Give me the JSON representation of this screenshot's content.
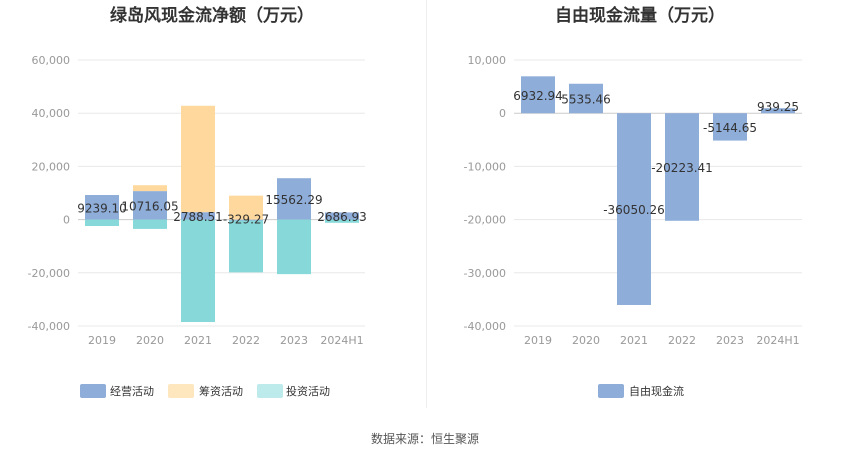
{
  "source": "数据来源：恒生聚源",
  "chart_data": [
    {
      "type": "bar",
      "stacked": true,
      "title": "绿岛风现金流净额（万元）",
      "categories": [
        "2019",
        "2020",
        "2021",
        "2022",
        "2023",
        "2024H1"
      ],
      "yticks": [
        "60,000",
        "40,000",
        "20,000",
        "0",
        "-20,000",
        "-40,000"
      ],
      "ylim": [
        -40000,
        60000
      ],
      "grid": true,
      "legend_position": "bottom",
      "series": [
        {
          "name": "经营活动",
          "color": "#8eadd9",
          "values": [
            9239.1,
            10716.05,
            2788.51,
            -329.27,
            15562.29,
            2686.93
          ]
        },
        {
          "name": "筹资活动",
          "color": "#fed89c",
          "values": [
            0,
            2200,
            40000,
            9000,
            0,
            0
          ]
        },
        {
          "name": "投资活动",
          "color": "#86d8d9",
          "values": [
            -2400,
            -3500,
            -38500,
            -19500,
            -20500,
            -1200
          ]
        }
      ],
      "data_labels": [
        "9239.10",
        "10716.05",
        "2788.51",
        "-329.27",
        "15562.29",
        "2686.93"
      ]
    },
    {
      "type": "bar",
      "title": "自由现金流量（万元）",
      "categories": [
        "2019",
        "2020",
        "2021",
        "2022",
        "2023",
        "2024H1"
      ],
      "yticks": [
        "10,000",
        "0",
        "-10,000",
        "-20,000",
        "-30,000",
        "-40,000"
      ],
      "ylim": [
        -40000,
        10000
      ],
      "grid": true,
      "legend_position": "bottom",
      "series": [
        {
          "name": "自由现金流",
          "color": "#8eadd9",
          "values": [
            6932.94,
            5535.46,
            -36050.26,
            -20223.41,
            -5144.65,
            939.25
          ]
        }
      ],
      "data_labels": [
        "6932.94",
        "5535.46",
        "-36050.26",
        "-20223.41",
        "-5144.65",
        "939.25"
      ]
    }
  ]
}
